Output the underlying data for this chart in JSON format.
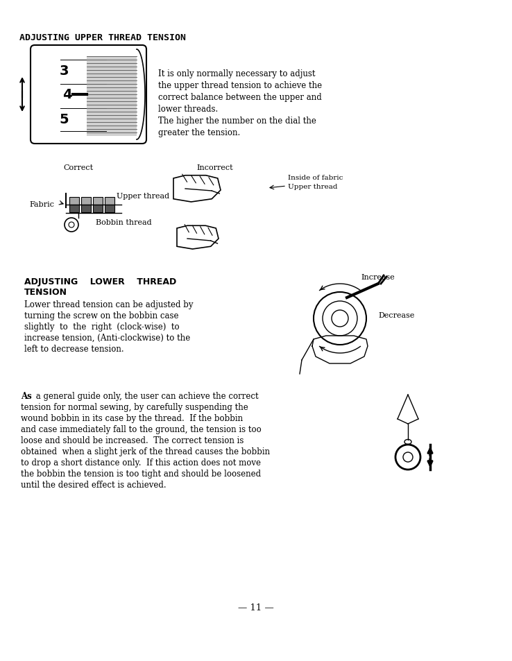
{
  "bg_color": "#ffffff",
  "title": "ADJUSTING UPPER THREAD TENSION",
  "section1_lines": [
    "It is only normally necessary to adjust",
    "the upper thread tension to achieve the",
    "correct balance between the upper and",
    "lower threads.",
    "The higher the number on the dial the",
    "greater the tension."
  ],
  "label_correct": "Correct",
  "label_incorrect": "Incorrect",
  "label_inside_fabric": "Inside of fabric",
  "label_upper_thread": "Upper thread",
  "label_fabric": "Fabric",
  "label_upper_thread2": "Upper thread",
  "label_bobbin_thread": "Bobbin thread",
  "section2_title": "ADJUSTING    LOWER    THREAD\nTENSION",
  "section2_lines": [
    "Lower thread tension can be adjusted by",
    "turning the screw on the bobbin case",
    "slightly  to  the  right  (clock-wise)  to",
    "increase tension, (Anti-clockwise) to the",
    "left to decrease tension."
  ],
  "label_increase": "Increase",
  "label_decrease": "Decrease",
  "section3_lines": [
    " a general guide only, the user can achieve the correct",
    "tension for normal sewing, by carefully suspending the",
    "wound bobbin in its case by the thread.  If the bobbin",
    "and case immediately fall to the ground, the tension is too",
    "loose and should be increased.  The correct tension is",
    "obtained  when a slight jerk of the thread causes the bobbin",
    "to drop a short distance only.  If this action does not move",
    "the bobbin the tension is too tight and should be loosened",
    "until the desired effect is achieved."
  ],
  "page_number": "— 11 —"
}
